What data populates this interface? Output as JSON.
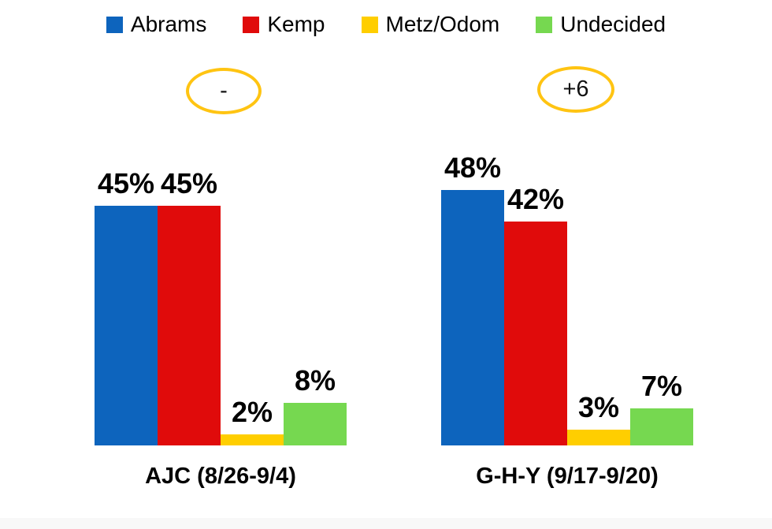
{
  "chart_data": {
    "type": "bar",
    "title": "",
    "categories": [
      "AJC (8/26-9/4)",
      "G-H-Y (9/17-9/20)"
    ],
    "series": [
      {
        "name": "Abrams",
        "color": "#0d64bd",
        "values": [
          45,
          48
        ]
      },
      {
        "name": "Kemp",
        "color": "#e00b0b",
        "values": [
          45,
          42
        ]
      },
      {
        "name": "Metz/Odom",
        "color": "#ffce00",
        "values": [
          2,
          3
        ]
      },
      {
        "name": "Undecided",
        "color": "#76d850",
        "values": [
          8,
          7
        ]
      }
    ],
    "value_suffix": "%",
    "ylim": [
      0,
      50
    ],
    "grid": false,
    "legend_position": "top",
    "group_annotations": [
      "-",
      "+6"
    ],
    "annotation_ring_color": "#ffc412"
  }
}
